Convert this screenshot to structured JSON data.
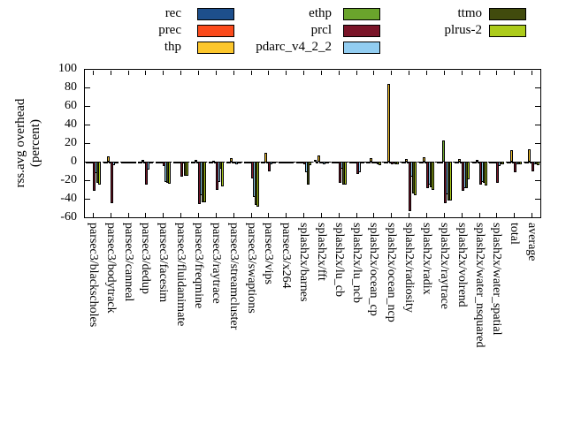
{
  "ylabel": {
    "line1": "rss.avg overhead",
    "line2": "(percent)"
  },
  "chart_data": {
    "type": "bar",
    "title": "",
    "xlabel": "",
    "ylabel": "rss.avg overhead (percent)",
    "ylim": [
      -60,
      100
    ],
    "yticks": [
      -60,
      -40,
      -20,
      0,
      20,
      40,
      60,
      80,
      100
    ],
    "grid": false,
    "legend_position": "top",
    "background_color": "#ffffff",
    "axis_color": "#000000",
    "legend_columns": [
      [
        "rec",
        "prec",
        "thp"
      ],
      [
        "ethp",
        "prcl",
        "pdarc_v4_2_2"
      ],
      [
        "ttmo",
        "plrus-2"
      ]
    ],
    "categories": [
      "parsec3/blackscholes",
      "parsec3/bodytrack",
      "parsec3/canneal",
      "parsec3/dedup",
      "parsec3/facesim",
      "parsec3/fluidanimate",
      "parsec3/freqmine",
      "parsec3/raytrace",
      "parsec3/streamcluster",
      "parsec3/swaptions",
      "parsec3/vips",
      "parsec3/x264",
      "splash2x/barnes",
      "splash2x/fft",
      "splash2x/lu_cb",
      "splash2x/lu_ncb",
      "splash2x/ocean_cp",
      "splash2x/ocean_ncp",
      "splash2x/radiosity",
      "splash2x/radix",
      "splash2x/raytrace",
      "splash2x/volrend",
      "splash2x/water_nsquared",
      "splash2x/water_spatial",
      "total",
      "average"
    ],
    "series": [
      {
        "name": "rec",
        "color": "#1d4f8c",
        "values": [
          -1,
          -1,
          -1,
          -1,
          -1,
          -1,
          -1,
          -1,
          -1,
          -1,
          -1,
          -1,
          -1,
          2,
          -1,
          -1,
          -1,
          -1,
          -1,
          -1,
          -2,
          -1,
          -1,
          -1,
          -1,
          -1
        ]
      },
      {
        "name": "prec",
        "color": "#fb4a1b",
        "values": [
          -1,
          -1,
          -1,
          -1,
          -1,
          -1,
          -1,
          -1,
          -1,
          -1,
          -1,
          -1,
          -1,
          -1,
          -1,
          -1,
          -1,
          -1,
          -1,
          -1,
          -1,
          -1,
          -1,
          -1,
          -1,
          -1
        ]
      },
      {
        "name": "thp",
        "color": "#fcc62c",
        "values": [
          -1,
          6,
          -1,
          2,
          -1,
          -1,
          2,
          1,
          4,
          -1,
          10,
          -1,
          -1,
          7,
          -1,
          -1,
          4,
          84,
          3,
          5,
          -1,
          3,
          2,
          -1,
          12,
          13
        ]
      },
      {
        "name": "ethp",
        "color": "#6aa42c",
        "values": [
          -1,
          -1,
          -1,
          -1,
          -1,
          -1,
          -1,
          -1,
          -1,
          -1,
          -1,
          -1,
          -1,
          -1,
          -1,
          -1,
          -1,
          -1,
          -1,
          -1,
          23,
          -1,
          -1,
          -1,
          -1,
          -1
        ]
      },
      {
        "name": "prcl",
        "color": "#7a1428",
        "values": [
          -31,
          -45,
          -2,
          -25,
          -5,
          -16,
          -46,
          -30,
          -2,
          -18,
          -10,
          -2,
          -3,
          -2,
          -23,
          -13,
          -2,
          -3,
          -53,
          -29,
          -45,
          -31,
          -25,
          -23,
          -11,
          -10
        ]
      },
      {
        "name": "pdarc_v4_2_2",
        "color": "#92cdf1",
        "values": [
          -12,
          -4,
          -2,
          -9,
          -22,
          -2,
          -36,
          -22,
          -3,
          -38,
          -3,
          -2,
          -11,
          -3,
          -8,
          -11,
          -2,
          -2,
          -16,
          -25,
          -35,
          -29,
          -22,
          -5,
          -3,
          -3
        ]
      },
      {
        "name": "ttmo",
        "color": "#414b0d",
        "values": [
          -23,
          -2,
          -1,
          -2,
          -23,
          -15,
          -44,
          -8,
          -2,
          -47,
          -2,
          -1,
          -25,
          -2,
          -25,
          -2,
          -3,
          -3,
          -34,
          -28,
          -42,
          -29,
          -23,
          -3,
          -3,
          -3
        ]
      },
      {
        "name": "plrus-2",
        "color": "#accb1a",
        "values": [
          -25,
          -2,
          -1,
          -2,
          -24,
          -15,
          -44,
          -27,
          -2,
          -49,
          -2,
          -2,
          -4,
          -2,
          -25,
          -2,
          -4,
          -3,
          -36,
          -30,
          -42,
          -19,
          -26,
          -3,
          -3,
          -4
        ]
      }
    ]
  }
}
